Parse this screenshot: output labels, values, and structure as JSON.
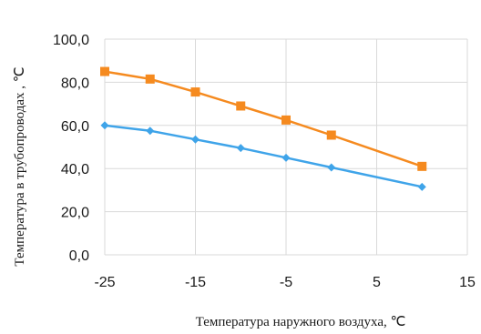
{
  "chart_data": {
    "type": "line",
    "title": "",
    "xlabel": "Температура наружного воздуха, ℃",
    "ylabel": "Температура в трубопроводах , ℃",
    "xlim": [
      -25,
      15
    ],
    "ylim": [
      0,
      100
    ],
    "x_ticks": [
      "-25",
      "-15",
      "-5",
      "5",
      "15"
    ],
    "y_ticks": [
      "0,0",
      "20,0",
      "40,0",
      "60,0",
      "80,0",
      "100,0"
    ],
    "grid": true,
    "legend": "none",
    "series": [
      {
        "color": "#f58a1f",
        "marker": "square",
        "x": [
          -25,
          -20,
          -15,
          -10,
          -5,
          0,
          10
        ],
        "y": [
          85,
          81.5,
          75.5,
          69,
          62.5,
          55.5,
          41
        ]
      },
      {
        "color": "#3fa4e9",
        "marker": "diamond",
        "x": [
          -25,
          -20,
          -15,
          -10,
          -5,
          0,
          10
        ],
        "y": [
          60,
          57.5,
          53.5,
          49.5,
          45,
          40.5,
          31.5
        ]
      }
    ]
  }
}
